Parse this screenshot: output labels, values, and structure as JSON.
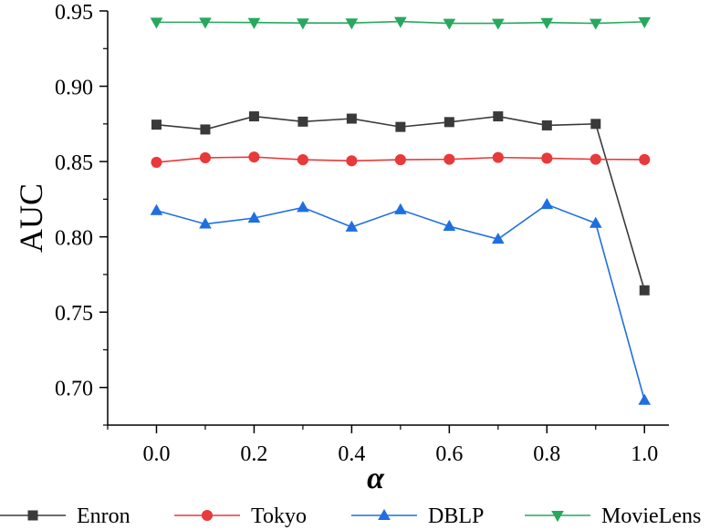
{
  "chart_data": {
    "type": "line",
    "xlabel": "α",
    "ylabel": "AUC",
    "xlim": [
      -0.1,
      1.05
    ],
    "ylim": [
      0.675,
      0.95
    ],
    "x": [
      0.0,
      0.1,
      0.2,
      0.3,
      0.4,
      0.5,
      0.6,
      0.7,
      0.8,
      0.9,
      1.0
    ],
    "x_ticks": [
      0.0,
      0.2,
      0.4,
      0.6,
      0.8,
      1.0
    ],
    "x_tick_labels": [
      "0.0",
      "0.2",
      "0.4",
      "0.6",
      "0.8",
      "1.0"
    ],
    "y_ticks": [
      0.7,
      0.75,
      0.8,
      0.85,
      0.9,
      0.95
    ],
    "y_tick_labels": [
      "0.70",
      "0.75",
      "0.80",
      "0.85",
      "0.90",
      "0.95"
    ],
    "legend_position": "bottom",
    "series": [
      {
        "name": "Enron",
        "color": "#3a3a3a",
        "marker": "square",
        "values": [
          0.8745,
          0.8713,
          0.88,
          0.8765,
          0.8785,
          0.873,
          0.8762,
          0.88,
          0.874,
          0.875,
          0.7645
        ]
      },
      {
        "name": "Tokyo",
        "color": "#e8393b",
        "marker": "circle",
        "values": [
          0.8495,
          0.8525,
          0.853,
          0.8512,
          0.8505,
          0.8512,
          0.8515,
          0.8527,
          0.8522,
          0.8515,
          0.8513
        ]
      },
      {
        "name": "DBLP",
        "color": "#1f6fe0",
        "marker": "triangle-up",
        "values": [
          0.8175,
          0.8085,
          0.8125,
          0.8195,
          0.8065,
          0.818,
          0.807,
          0.7985,
          0.8215,
          0.809,
          0.6915
        ]
      },
      {
        "name": "MovieLens",
        "color": "#27a85f",
        "marker": "triangle-down",
        "values": [
          0.9425,
          0.9425,
          0.9423,
          0.942,
          0.942,
          0.943,
          0.9418,
          0.9418,
          0.9423,
          0.9418,
          0.9428
        ]
      }
    ]
  }
}
